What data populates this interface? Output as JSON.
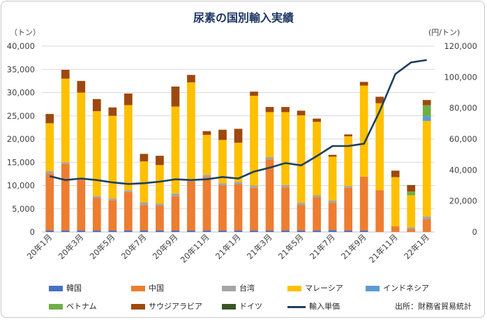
{
  "title": "尿素の国別輸入実績",
  "unit_left": "（トン）",
  "unit_right": "(円/トン)",
  "source": "出所：財務省貿易統計",
  "colors": {
    "韓国": "#4472c4",
    "中国": "#ed7d31",
    "台湾": "#a5a5a5",
    "マレーシア": "#ffc000",
    "インドネシア": "#5b9bd5",
    "ベトナム": "#70ad47",
    "サウジアラビア": "#9e480e",
    "ドイツ": "#375623",
    "輸入単価": "#1f3f5f"
  },
  "legend": [
    {
      "name": "韓国",
      "kind": "bar"
    },
    {
      "name": "中国",
      "kind": "bar"
    },
    {
      "name": "台湾",
      "kind": "bar"
    },
    {
      "name": "マレーシア",
      "kind": "bar"
    },
    {
      "name": "インドネシア",
      "kind": "bar"
    },
    {
      "name": "ベトナム",
      "kind": "bar"
    },
    {
      "name": "サウジアラビア",
      "kind": "bar"
    },
    {
      "name": "ドイツ",
      "kind": "bar"
    },
    {
      "name": "輸入単価",
      "kind": "line"
    }
  ],
  "chart_data": {
    "type": "bar",
    "stacked": true,
    "categories": [
      "20年1月",
      "20年2月",
      "20年3月",
      "20年4月",
      "20年5月",
      "20年6月",
      "20年7月",
      "20年8月",
      "20年9月",
      "20年10月",
      "20年11月",
      "20年12月",
      "21年1月",
      "21年2月",
      "21年3月",
      "21年4月",
      "21年5月",
      "21年6月",
      "21年7月",
      "21年8月",
      "21年9月",
      "21年10月",
      "21年11月",
      "21年12月",
      "22年1月"
    ],
    "x_tick_labels": [
      "20年1月",
      "20年3月",
      "20年5月",
      "20年7月",
      "20年9月",
      "20年11月",
      "21年1月",
      "21年3月",
      "21年5月",
      "21年7月",
      "21年9月",
      "21年11月",
      "22年1月"
    ],
    "y_left": {
      "min": 0,
      "max": 40000,
      "ticks": [
        "0",
        "5,000",
        "10,000",
        "15,000",
        "20,000",
        "25,000",
        "30,000",
        "35,000",
        "40,000"
      ]
    },
    "y_right": {
      "min": 0,
      "max": 120000,
      "ticks": [
        "0",
        "20,000",
        "40,000",
        "60,000",
        "80,000",
        "100,000",
        "120,000"
      ]
    },
    "grid": true,
    "legend_position": "bottom",
    "series": [
      {
        "name": "韓国",
        "values": [
          300,
          300,
          300,
          300,
          300,
          300,
          300,
          300,
          300,
          300,
          300,
          300,
          300,
          300,
          300,
          300,
          300,
          300,
          400,
          300,
          300,
          0,
          0,
          0,
          0
        ]
      },
      {
        "name": "中国",
        "values": [
          12300,
          14400,
          11100,
          7000,
          6500,
          8300,
          5500,
          5400,
          7400,
          10600,
          11500,
          9700,
          10000,
          9200,
          15300,
          9300,
          5500,
          7200,
          5900,
          9200,
          11600,
          9000,
          1200,
          600,
          2700
        ]
      },
      {
        "name": "台湾",
        "values": [
          500,
          300,
          300,
          400,
          400,
          400,
          600,
          400,
          600,
          500,
          500,
          500,
          500,
          500,
          500,
          500,
          500,
          400,
          500,
          400,
          0,
          0,
          0,
          400,
          600
        ]
      },
      {
        "name": "マレーシア",
        "values": [
          10300,
          18000,
          18300,
          18300,
          17800,
          18300,
          8800,
          8300,
          18700,
          20800,
          8600,
          9300,
          8400,
          19300,
          9700,
          15700,
          18800,
          15800,
          9400,
          10700,
          19600,
          18700,
          10600,
          6900,
          20600
        ]
      },
      {
        "name": "インドネシア",
        "values": [
          0,
          0,
          0,
          0,
          0,
          0,
          0,
          0,
          0,
          0,
          0,
          0,
          0,
          0,
          0,
          0,
          0,
          0,
          0,
          0,
          0,
          0,
          0,
          0,
          1000
        ]
      },
      {
        "name": "ベトナム",
        "values": [
          0,
          0,
          0,
          0,
          0,
          0,
          0,
          0,
          0,
          0,
          0,
          0,
          0,
          0,
          0,
          0,
          0,
          0,
          0,
          0,
          0,
          0,
          0,
          800,
          2400
        ]
      },
      {
        "name": "サウジアラビア",
        "values": [
          2000,
          1900,
          2500,
          2600,
          1800,
          2500,
          1600,
          2000,
          4300,
          1600,
          800,
          2200,
          3000,
          900,
          1100,
          1100,
          1000,
          700,
          400,
          400,
          800,
          1400,
          1400,
          1300,
          1100
        ]
      },
      {
        "name": "ドイツ",
        "values": [
          0,
          0,
          0,
          0,
          0,
          0,
          0,
          0,
          0,
          0,
          0,
          0,
          0,
          0,
          0,
          0,
          0,
          0,
          0,
          0,
          0,
          0,
          0,
          100,
          0
        ]
      }
    ],
    "line_series": {
      "name": "輸入単価",
      "axis": "right",
      "values": [
        36000,
        33500,
        34500,
        33500,
        32000,
        31000,
        31500,
        32500,
        34000,
        33500,
        34000,
        35500,
        34500,
        39000,
        41500,
        44500,
        43000,
        49000,
        55500,
        55500,
        57000,
        78000,
        102000,
        109500,
        111000
      ]
    }
  }
}
